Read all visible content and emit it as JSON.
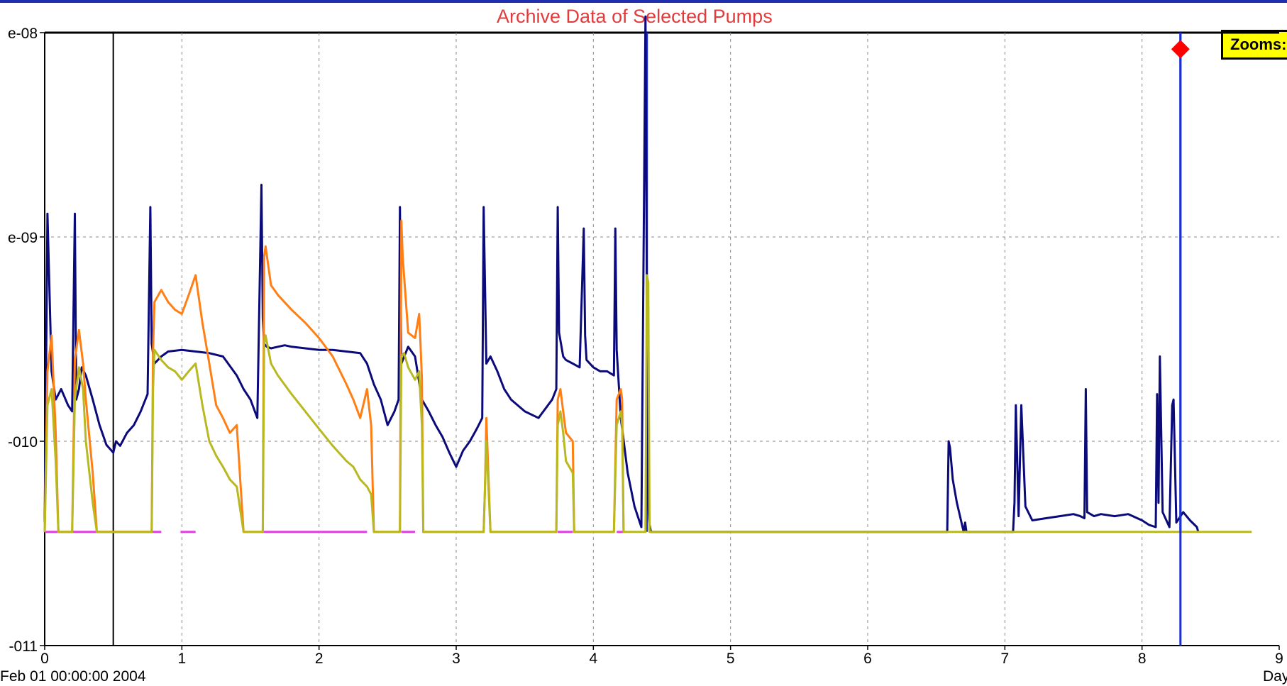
{
  "chart_data": {
    "type": "line",
    "title": "Archive Data of Selected Pumps",
    "zoom_label": "Zooms:",
    "start_label": "Feb 01 00:00:00 2004",
    "x_unit_label": "Day",
    "x_ticks": [
      "0",
      "1",
      "2",
      "3",
      "4",
      "5",
      "6",
      "7",
      "8",
      "9"
    ],
    "y_ticks": [
      "e-08",
      "e-09",
      "-010",
      "-011"
    ],
    "y_scale": "log",
    "ylim": [
      1e-11,
      1e-08
    ],
    "xlim": [
      0,
      9
    ],
    "grid": true,
    "cursor_day": 8.28,
    "marker_day": 8.28,
    "marker_value": 8.3e-09,
    "black_cursor_day": 0.5,
    "baseline_value": 3.6e-11,
    "colors": {
      "navy": "#0a0a7a",
      "blue": "#1c2fd6",
      "orange": "#ff7f14",
      "olive": "#b8b820",
      "magenta": "#e040e0",
      "red": "#ff0000",
      "title": "#e23b3b"
    },
    "series": [
      {
        "color": "#0a0a7a",
        "x": [
          0,
          0.02,
          0.05,
          0.08,
          0.12,
          0.17,
          0.2,
          0.22,
          0.23,
          0.25,
          0.27,
          0.3,
          0.35,
          0.4,
          0.45,
          0.5,
          0.52,
          0.55,
          0.6,
          0.65,
          0.7,
          0.75,
          0.77,
          0.78,
          0.8,
          0.85,
          0.9,
          1,
          1.1,
          1.2,
          1.3,
          1.4,
          1.45,
          1.5,
          1.55,
          1.58,
          1.59,
          1.6,
          1.62,
          1.65,
          1.7,
          1.75,
          1.8,
          1.9,
          2,
          2.1,
          2.2,
          2.3,
          2.35,
          2.4,
          2.45,
          2.5,
          2.55,
          2.58,
          2.59,
          2.6,
          2.65,
          2.7,
          2.75,
          2.8,
          2.85,
          2.9,
          2.95,
          3.0,
          3.05,
          3.1,
          3.15,
          3.19,
          3.2,
          3.22,
          3.25,
          3.3,
          3.35,
          3.4,
          3.5,
          3.6,
          3.7,
          3.73,
          3.74,
          3.75,
          3.78,
          3.8,
          3.85,
          3.9,
          3.93,
          3.94,
          3.95,
          4.0,
          4.05,
          4.1,
          4.15,
          4.16,
          4.17,
          4.2,
          4.25,
          4.3,
          4.35,
          4.38,
          4.39,
          4.4,
          4.41,
          4.42,
          4.43,
          6.58,
          6.59,
          6.6,
          6.62,
          6.65,
          6.7,
          6.71,
          6.72,
          7.06,
          7.07,
          7.08,
          7.1,
          7.12,
          7.15,
          7.2,
          7.3,
          7.4,
          7.5,
          7.55,
          7.58,
          7.59,
          7.6,
          7.65,
          7.7,
          7.8,
          7.9,
          8.0,
          8.05,
          8.1,
          8.11,
          8.12,
          8.13,
          8.15,
          8.2,
          8.22,
          8.23,
          8.25,
          8.3,
          8.35,
          8.4,
          8.41
        ],
        "y": [
          4e-11,
          1.3e-09,
          2.2e-10,
          1.6e-10,
          1.8e-10,
          1.5e-10,
          1.4e-10,
          1.3e-09,
          1.6e-10,
          1.8e-10,
          2.3e-10,
          2.1e-10,
          1.6e-10,
          1.2e-10,
          9.6e-11,
          8.8e-11,
          1e-10,
          9.5e-11,
          1.1e-10,
          1.2e-10,
          1.4e-10,
          1.7e-10,
          1.4e-09,
          3e-10,
          2.4e-10,
          2.6e-10,
          2.75e-10,
          2.8e-10,
          2.75e-10,
          2.7e-10,
          2.6e-10,
          2.1e-10,
          1.8e-10,
          1.6e-10,
          1.3e-10,
          1.8e-09,
          4e-10,
          3e-10,
          2.9e-10,
          2.85e-10,
          2.9e-10,
          2.95e-10,
          2.9e-10,
          2.85e-10,
          2.8e-10,
          2.8e-10,
          2.75e-10,
          2.7e-10,
          2.4e-10,
          1.9e-10,
          1.6e-10,
          1.2e-10,
          1.4e-10,
          1.6e-10,
          1.4e-09,
          2.4e-10,
          2.9e-10,
          2.6e-10,
          1.6e-10,
          1.4e-10,
          1.2e-10,
          1.05e-10,
          8.8e-11,
          7.5e-11,
          9e-11,
          1e-10,
          1.15e-10,
          1.3e-10,
          1.4e-09,
          2.4e-10,
          2.6e-10,
          2.2e-10,
          1.8e-10,
          1.6e-10,
          1.4e-10,
          1.3e-10,
          1.6e-10,
          1.8e-10,
          1.4e-09,
          3.4e-10,
          2.6e-10,
          2.5e-10,
          2.4e-10,
          2.3e-10,
          1.1e-09,
          3.3e-10,
          2.5e-10,
          2.3e-10,
          2.2e-10,
          2.2e-10,
          2.1e-10,
          1.1e-09,
          2.8e-10,
          1.3e-10,
          7e-11,
          4.8e-11,
          3.8e-11,
          1.2e-08,
          6e-10,
          4.8e-11,
          3.9e-11,
          3.6e-11,
          3.6e-11,
          3.6e-11,
          1e-10,
          9.3e-11,
          6.5e-11,
          5e-11,
          3.6e-11,
          4e-11,
          3.6e-11,
          3.6e-11,
          5e-11,
          1.5e-10,
          4.3e-11,
          1.5e-10,
          4.8e-11,
          4.1e-11,
          4.2e-11,
          4.3e-11,
          4.4e-11,
          4.3e-11,
          4.2e-11,
          1.8e-10,
          4.5e-11,
          4.3e-11,
          4.4e-11,
          4.3e-11,
          4.4e-11,
          4.1e-11,
          3.9e-11,
          3.8e-11,
          1.7e-10,
          5e-11,
          2.6e-10,
          4.5e-11,
          3.8e-11,
          1.5e-10,
          1.6e-10,
          4e-11,
          4.5e-11,
          4.1e-11,
          3.8e-11,
          3.6e-11
        ]
      },
      {
        "color": "#ff7f14",
        "x": [
          0,
          0.02,
          0.05,
          0.08,
          0.1,
          0.12,
          0.2,
          0.22,
          0.25,
          0.28,
          0.3,
          0.35,
          0.38,
          0.4,
          0.78,
          0.79,
          0.8,
          0.85,
          0.9,
          0.95,
          1.0,
          1.05,
          1.1,
          1.15,
          1.2,
          1.25,
          1.3,
          1.35,
          1.4,
          1.45,
          1.59,
          1.6,
          1.61,
          1.65,
          1.7,
          1.8,
          1.9,
          2.0,
          2.1,
          2.2,
          2.25,
          2.3,
          2.35,
          2.38,
          2.4,
          2.59,
          2.6,
          2.61,
          2.65,
          2.7,
          2.73,
          2.74,
          2.75,
          2.76,
          3.2,
          3.21,
          3.22,
          3.25,
          3.73,
          3.74,
          3.76,
          3.78,
          3.8,
          3.85,
          3.86,
          4.15,
          4.17,
          4.2,
          4.21,
          4.22
        ],
        "y": [
          3.6e-11,
          2.2e-10,
          3.3e-10,
          1.1e-10,
          3.6e-11,
          3.6e-11,
          3.6e-11,
          2.5e-10,
          3.5e-10,
          2.4e-10,
          1.6e-10,
          7e-11,
          3.6e-11,
          3.6e-11,
          3.6e-11,
          2.8e-10,
          4.8e-10,
          5.5e-10,
          4.8e-10,
          4.4e-10,
          4.2e-10,
          5.2e-10,
          6.5e-10,
          3.8e-10,
          2.4e-10,
          1.5e-10,
          1.3e-10,
          1.1e-10,
          1.2e-10,
          3.6e-11,
          3.6e-11,
          8e-10,
          9e-10,
          5.8e-10,
          5.2e-10,
          4.4e-10,
          3.8e-10,
          3.2e-10,
          2.6e-10,
          1.9e-10,
          1.6e-10,
          1.3e-10,
          1.8e-10,
          1.2e-10,
          3.6e-11,
          3.6e-11,
          1.2e-09,
          8e-10,
          3.4e-10,
          3.2e-10,
          4.2e-10,
          3e-10,
          2e-10,
          3.6e-11,
          3.6e-11,
          6e-11,
          1.3e-10,
          3.6e-11,
          3.6e-11,
          1.6e-10,
          1.8e-10,
          1.4e-10,
          1.1e-10,
          1e-10,
          3.6e-11,
          3.6e-11,
          1.6e-10,
          1.8e-10,
          1.6e-10,
          3.6e-11
        ]
      },
      {
        "color": "#b8b820",
        "x": [
          0,
          0.02,
          0.05,
          0.08,
          0.1,
          0.12,
          0.2,
          0.22,
          0.25,
          0.28,
          0.3,
          0.35,
          0.38,
          0.4,
          0.78,
          0.79,
          0.8,
          0.85,
          0.9,
          0.95,
          1.0,
          1.05,
          1.1,
          1.15,
          1.2,
          1.25,
          1.3,
          1.35,
          1.4,
          1.45,
          1.59,
          1.6,
          1.61,
          1.65,
          1.7,
          1.8,
          1.9,
          2.0,
          2.1,
          2.2,
          2.25,
          2.3,
          2.35,
          2.38,
          2.4,
          2.59,
          2.6,
          2.62,
          2.65,
          2.7,
          2.73,
          2.74,
          2.75,
          2.76,
          3.2,
          3.21,
          3.22,
          3.25,
          3.73,
          3.74,
          3.76,
          3.78,
          3.8,
          3.85,
          3.86,
          4.15,
          4.17,
          4.2,
          4.21,
          4.22,
          4.38,
          4.39,
          4.4,
          4.41,
          8.8
        ],
        "y": [
          3.6e-11,
          1.5e-10,
          1.8e-10,
          8e-11,
          3.6e-11,
          3.6e-11,
          3.6e-11,
          1.6e-10,
          2.3e-10,
          1.8e-10,
          1e-10,
          5e-11,
          3.6e-11,
          3.6e-11,
          3.6e-11,
          1.8e-10,
          2.8e-10,
          2.5e-10,
          2.3e-10,
          2.2e-10,
          2e-10,
          2.2e-10,
          2.4e-10,
          1.5e-10,
          1e-10,
          8.5e-11,
          7.5e-11,
          6.5e-11,
          6e-11,
          3.6e-11,
          3.6e-11,
          3e-10,
          3.3e-10,
          2.4e-10,
          2.1e-10,
          1.7e-10,
          1.4e-10,
          1.15e-10,
          9.5e-11,
          8e-11,
          7.5e-11,
          6.5e-11,
          6e-11,
          5.5e-11,
          3.6e-11,
          3.6e-11,
          2.6e-10,
          2.7e-10,
          2.3e-10,
          2e-10,
          2.2e-10,
          1.6e-10,
          1.2e-10,
          3.6e-11,
          3.6e-11,
          6e-11,
          1e-10,
          3.6e-11,
          3.6e-11,
          1.2e-10,
          1.4e-10,
          1.1e-10,
          8e-11,
          7e-11,
          3.6e-11,
          3.6e-11,
          1.2e-10,
          1.4e-10,
          1.2e-10,
          3.6e-11,
          3.6e-11,
          6.5e-10,
          6e-10,
          3.6e-11,
          3.6e-11
        ]
      }
    ],
    "magenta_segments": [
      [
        0,
        0.85
      ],
      [
        0.99,
        1.1
      ],
      [
        1.59,
        2.35
      ],
      [
        2.6,
        2.7
      ],
      [
        3.74,
        3.85
      ],
      [
        4.17,
        4.22
      ]
    ],
    "blue_segments": [
      [
        4.38,
        4.4
      ],
      [
        8.27,
        8.29
      ]
    ]
  }
}
